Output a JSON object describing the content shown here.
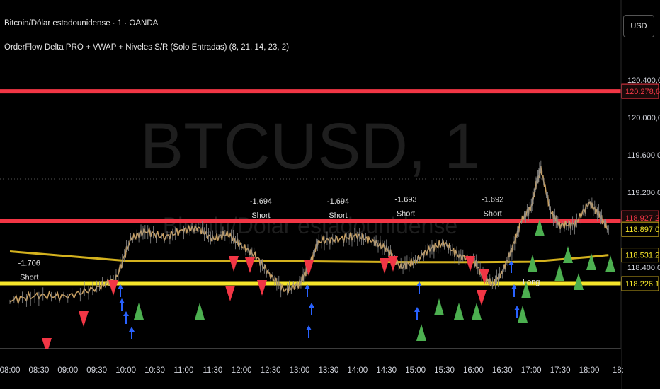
{
  "header": {
    "symbol_line": "Bitcoin/Dólar estadounidense · 1 · OANDA",
    "indicator_line": "OrderFlow Delta PRO + VWAP + Niveles S/R (Solo Entradas) (8, 21, 14, 23, 2)"
  },
  "currency_button": "USD",
  "watermark": {
    "big": "BTCUSD, 1",
    "small": "Bitcoin/Dólar estadounidense"
  },
  "colors": {
    "background": "#000000",
    "resistance": "#f23645",
    "support": "#f5e52a",
    "vwap": "#d4b21e",
    "long_marker": "#4caf50",
    "short_marker": "#f23645",
    "arrow_up": "#2962ff",
    "price_line": "#c8a063"
  },
  "chart_data": {
    "type": "line",
    "title": "Bitcoin/Dólar estadounidense · 1 · OANDA",
    "x_ticks": [
      "08:00",
      "08:30",
      "09:00",
      "09:30",
      "10:00",
      "10:30",
      "11:00",
      "11:30",
      "12:00",
      "12:30",
      "13:00",
      "13:30",
      "14:00",
      "14:30",
      "15:00",
      "15:30",
      "16:00",
      "16:30",
      "17:00",
      "17:30",
      "18:00",
      "18:"
    ],
    "y_ticks": [
      "120.400,0",
      "120.000,0",
      "119.600,0",
      "119.200,0",
      "118.400,0"
    ],
    "ylim": [
      118130,
      120470
    ],
    "series": [
      {
        "name": "BTCUSD",
        "x": [
          "08:00",
          "08:30",
          "09:00",
          "09:30",
          "09:50",
          "10:05",
          "10:20",
          "10:40",
          "11:00",
          "11:15",
          "11:30",
          "11:45",
          "12:00",
          "12:15",
          "12:30",
          "12:45",
          "13:00",
          "13:10",
          "13:20",
          "13:40",
          "14:00",
          "14:15",
          "14:30",
          "14:45",
          "15:00",
          "15:15",
          "15:30",
          "15:45",
          "16:00",
          "16:10",
          "16:20",
          "16:30",
          "16:40",
          "16:50",
          "17:00",
          "17:05",
          "17:10",
          "17:20",
          "17:30",
          "17:45",
          "18:00",
          "18:10",
          "18:20"
        ],
        "y": [
          118050,
          118100,
          118090,
          118180,
          118280,
          118700,
          118790,
          118720,
          118800,
          118820,
          118700,
          118760,
          118630,
          118520,
          118310,
          118150,
          118220,
          118430,
          118680,
          118700,
          118740,
          118680,
          118600,
          118400,
          118470,
          118600,
          118660,
          118520,
          118480,
          118300,
          118210,
          118350,
          118600,
          118910,
          119040,
          119280,
          119450,
          119000,
          118850,
          118860,
          119090,
          118960,
          118800
        ]
      }
    ],
    "levels": [
      {
        "name": "resistance",
        "value": 120278.6,
        "label": "120.278,6",
        "color": "#f23645"
      },
      {
        "name": "resistance",
        "value": 118897.0,
        "label": "118.897,0",
        "color": "#f23645"
      },
      {
        "name": "support",
        "value": 118226.1,
        "label": "118.226,1",
        "color": "#f5e52a"
      }
    ],
    "vwap": {
      "x": [
        "08:00",
        "09:00",
        "10:00",
        "11:00",
        "12:00",
        "13:00",
        "14:00",
        "15:00",
        "16:00",
        "17:00",
        "18:00",
        "18:20"
      ],
      "y": [
        118570,
        118520,
        118470,
        118465,
        118465,
        118465,
        118460,
        118455,
        118455,
        118460,
        118510,
        118531.2
      ],
      "label": "118.531,2"
    },
    "price_labels": [
      {
        "value": 118927.2,
        "label": "118.927,2"
      }
    ],
    "annotations": [
      {
        "x": "08:20",
        "y": 118420,
        "delta": "-1.706",
        "side": "Short"
      },
      {
        "x": "12:20",
        "y": 119080,
        "delta": "-1.694",
        "side": "Short"
      },
      {
        "x": "13:40",
        "y": 119080,
        "delta": "-1.694",
        "side": "Short"
      },
      {
        "x": "14:50",
        "y": 119100,
        "delta": "-1.693",
        "side": "Short"
      },
      {
        "x": "16:20",
        "y": 119100,
        "delta": "-1.692",
        "side": "Short"
      },
      {
        "x": "17:00",
        "y": 118220,
        "delta": "",
        "side": "Long"
      }
    ]
  }
}
